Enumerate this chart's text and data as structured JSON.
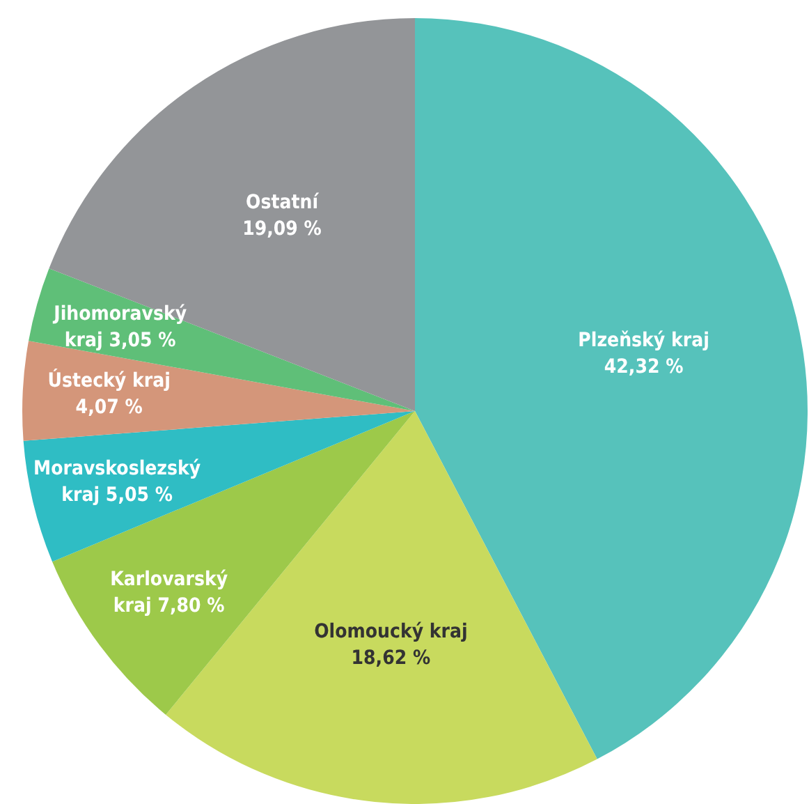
{
  "chart_data": {
    "type": "pie",
    "categories": [
      "Plzeňský kraj",
      "Olomoucký kraj",
      "Karlovarský kraj",
      "Moravskoslezský kraj",
      "Ústecký kraj",
      "Jihomoravský kraj",
      "Ostatní"
    ],
    "values": [
      42.32,
      18.62,
      7.8,
      5.05,
      4.07,
      3.05,
      19.09
    ],
    "value_labels": [
      "42,32 %",
      "18,62 %",
      "7,80 %",
      "5,05 %",
      "4,07 %",
      "3,05 %",
      "19,09 %"
    ],
    "colors": [
      "#56c2bb",
      "#c8da5e",
      "#9dc94a",
      "#2fbdc4",
      "#d4967a",
      "#5fbf78",
      "#939598"
    ],
    "legend": false
  }
}
